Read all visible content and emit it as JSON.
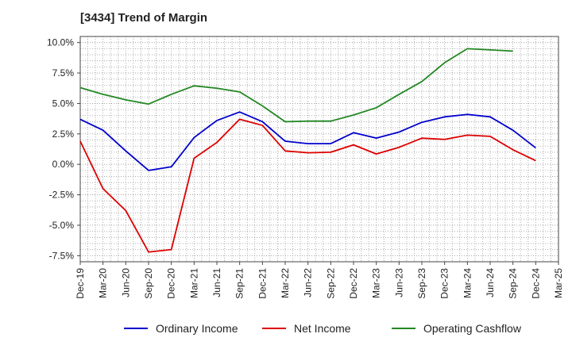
{
  "chart_data": {
    "type": "line",
    "title": "[3434]  Trend of Margin",
    "xlabel": "",
    "ylabel": "",
    "categories": [
      "Dec-19",
      "Mar-20",
      "Jun-20",
      "Sep-20",
      "Dec-20",
      "Mar-21",
      "Jun-21",
      "Sep-21",
      "Dec-21",
      "Mar-22",
      "Jun-22",
      "Sep-22",
      "Dec-22",
      "Mar-23",
      "Jun-23",
      "Sep-23",
      "Dec-23",
      "Mar-24",
      "Jun-24",
      "Sep-24",
      "Dec-24",
      "Mar-25"
    ],
    "ylim": [
      -8.0,
      10.5
    ],
    "yticks": [
      10.0,
      7.5,
      5.0,
      2.5,
      0.0,
      -2.5,
      -5.0,
      -7.5
    ],
    "ytick_labels": [
      "10.0%",
      "7.5%",
      "5.0%",
      "2.5%",
      "0.0%",
      "-2.5%",
      "-5.0%",
      "-7.5%"
    ],
    "grid": true,
    "legend_position": "bottom",
    "series": [
      {
        "name": "Ordinary Income",
        "color": "#0000cc",
        "values": [
          3.7,
          2.8,
          1.1,
          -0.5,
          -0.2,
          2.2,
          3.6,
          4.3,
          3.5,
          1.9,
          1.7,
          1.7,
          2.6,
          2.15,
          2.65,
          3.45,
          3.9,
          4.1,
          3.9,
          2.8,
          1.35,
          null
        ]
      },
      {
        "name": "Net Income",
        "color": "#dd0000",
        "values": [
          1.9,
          -2.0,
          -3.8,
          -7.2,
          -7.0,
          0.5,
          1.8,
          3.7,
          3.2,
          1.1,
          0.95,
          1.0,
          1.6,
          0.85,
          1.4,
          2.15,
          2.05,
          2.4,
          2.3,
          1.2,
          0.3,
          null
        ]
      },
      {
        "name": "Operating Cashflow",
        "color": "#228822",
        "values": [
          6.3,
          5.75,
          5.3,
          4.95,
          5.75,
          6.45,
          6.25,
          5.95,
          4.8,
          3.5,
          3.55,
          3.55,
          4.05,
          4.65,
          5.75,
          6.8,
          8.35,
          9.5,
          9.4,
          9.3,
          null,
          null
        ]
      }
    ]
  }
}
